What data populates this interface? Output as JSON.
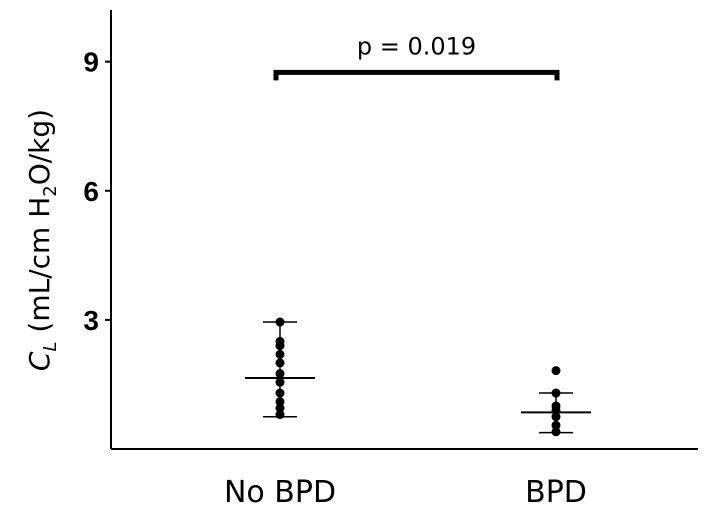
{
  "chart_data": {
    "type": "scatter",
    "categories": [
      "No BPD",
      "BPD"
    ],
    "ylabel": {
      "symbol": "C",
      "symbol_sub": "L",
      "unit_pre": " (mL/cm H",
      "unit_sub": "2",
      "unit_post": "O/kg)"
    },
    "yticks": [
      3,
      6,
      9
    ],
    "ylim": [
      0,
      10.2
    ],
    "grid": false,
    "series": [
      {
        "category": "No BPD",
        "points": [
          2.95,
          2.5,
          2.4,
          2.2,
          2.0,
          1.75,
          1.55,
          1.3,
          1.1,
          0.95,
          0.8
        ],
        "mean": 1.65,
        "sd_low": 0.75,
        "sd_high": 2.95
      },
      {
        "category": "BPD",
        "points": [
          1.82,
          1.3,
          1.0,
          0.9,
          0.75,
          0.55,
          0.4
        ],
        "mean": 0.85,
        "sd_low": 0.38,
        "sd_high": 1.3
      }
    ],
    "annotation": {
      "text": "p = 0.019",
      "from": "No BPD",
      "to": "BPD",
      "y": 8.75
    },
    "colors": {
      "points": "#000000",
      "axis": "#000000"
    }
  }
}
